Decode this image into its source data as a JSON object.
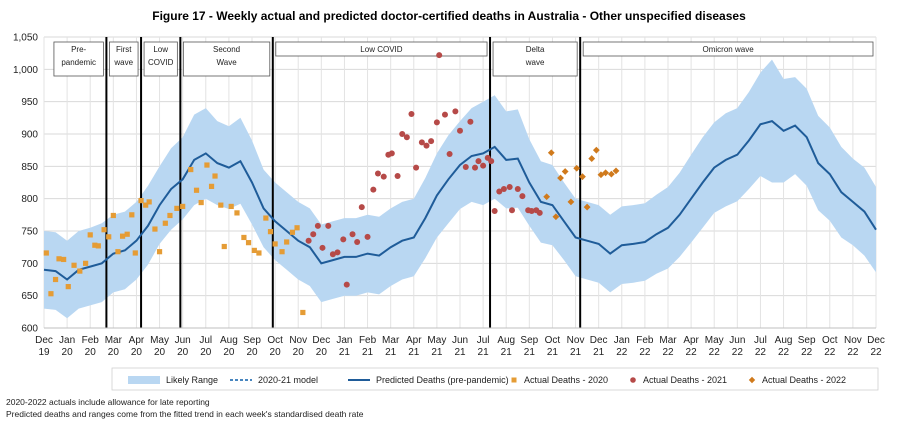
{
  "title": "Figure 17 - Weekly actual and predicted doctor-certified deaths in Australia - Other unspecified diseases",
  "footnotes": [
    "2020-2022  actuals include allowance for late reporting",
    "Predicted deaths and ranges come from the fitted trend in each week's standardised death rate"
  ],
  "colors": {
    "range": "#b9d7f2",
    "predicted": "#1f5c99",
    "model": "#2e75b6",
    "actual_2020": "#e59c35",
    "actual_2021": "#b64a48",
    "actual_2022": "#d07a1c"
  },
  "chart_data": {
    "type": "line",
    "title": "Figure 17 - Weekly actual and predicted doctor-certified deaths in Australia - Other unspecified diseases",
    "ylim": [
      600,
      1050
    ],
    "yticks": [
      600,
      650,
      700,
      750,
      800,
      850,
      900,
      950,
      1000,
      1050
    ],
    "ytick_labels": [
      "600",
      "650",
      "700",
      "750",
      "800",
      "850",
      "900",
      "950",
      "1,000",
      "1,050"
    ],
    "xlim": [
      0,
      36
    ],
    "xticks": [
      [
        "Dec",
        "19"
      ],
      [
        "Jan",
        "20"
      ],
      [
        "Feb",
        "20"
      ],
      [
        "Mar",
        "20"
      ],
      [
        "Apr",
        "20"
      ],
      [
        "May",
        "20"
      ],
      [
        "Jun",
        "20"
      ],
      [
        "Jul",
        "20"
      ],
      [
        "Aug",
        "20"
      ],
      [
        "Sep",
        "20"
      ],
      [
        "Oct",
        "20"
      ],
      [
        "Nov",
        "20"
      ],
      [
        "Dec",
        "20"
      ],
      [
        "Jan",
        "21"
      ],
      [
        "Feb",
        "21"
      ],
      [
        "Mar",
        "21"
      ],
      [
        "Apr",
        "21"
      ],
      [
        "May",
        "21"
      ],
      [
        "Jun",
        "21"
      ],
      [
        "Jul",
        "21"
      ],
      [
        "Aug",
        "21"
      ],
      [
        "Sep",
        "21"
      ],
      [
        "Oct",
        "21"
      ],
      [
        "Nov",
        "21"
      ],
      [
        "Dec",
        "21"
      ],
      [
        "Jan",
        "22"
      ],
      [
        "Feb",
        "22"
      ],
      [
        "Mar",
        "22"
      ],
      [
        "Apr",
        "22"
      ],
      [
        "May",
        "22"
      ],
      [
        "Jun",
        "22"
      ],
      [
        "Jul",
        "22"
      ],
      [
        "Aug",
        "22"
      ],
      [
        "Sep",
        "22"
      ],
      [
        "Oct",
        "22"
      ],
      [
        "Nov",
        "22"
      ],
      [
        "Dec",
        "22"
      ]
    ],
    "grid": true,
    "legend_position": "bottom",
    "legend": [
      "Likely Range",
      "2020-21 model",
      "Predicted Deaths (pre-pandemic)",
      "Actual Deaths - 2020",
      "Actual Deaths - 2021",
      "Actual Deaths - 2022"
    ],
    "periods": [
      {
        "label": [
          "Pre-",
          "pandemic"
        ],
        "start": 0.3,
        "end": 2.7,
        "boundary": null
      },
      {
        "label": [
          "First",
          "wave"
        ],
        "start": 2.7,
        "end": 4.2,
        "boundary": 2.7
      },
      {
        "label": [
          "Low",
          "COVID"
        ],
        "start": 4.2,
        "end": 5.9,
        "boundary": 4.2
      },
      {
        "label": [
          "Second",
          "Wave"
        ],
        "start": 5.9,
        "end": 9.9,
        "boundary": 5.9
      },
      {
        "label": [
          "Low COVID"
        ],
        "start": 9.9,
        "end": 19.3,
        "boundary": 9.9
      },
      {
        "label": [
          "Delta",
          "wave"
        ],
        "start": 19.3,
        "end": 23.2,
        "boundary": 19.3
      },
      {
        "label": [
          "Omicron wave"
        ],
        "start": 23.2,
        "end": 36,
        "boundary": 23.2
      }
    ],
    "predicted": [
      [
        0,
        690
      ],
      [
        0.5,
        688
      ],
      [
        1,
        675
      ],
      [
        1.5,
        690
      ],
      [
        2,
        695
      ],
      [
        2.5,
        700
      ],
      [
        3,
        715
      ],
      [
        3.5,
        720
      ],
      [
        4,
        735
      ],
      [
        4.5,
        758
      ],
      [
        5,
        790
      ],
      [
        5.5,
        815
      ],
      [
        6,
        830
      ],
      [
        6.5,
        860
      ],
      [
        7,
        870
      ],
      [
        7.5,
        855
      ],
      [
        8,
        848
      ],
      [
        8.5,
        858
      ],
      [
        9,
        825
      ],
      [
        9.5,
        785
      ],
      [
        10,
        765
      ],
      [
        10.5,
        750
      ],
      [
        11,
        735
      ],
      [
        11.5,
        725
      ],
      [
        12,
        700
      ],
      [
        12.5,
        705
      ],
      [
        13,
        710
      ],
      [
        13.5,
        710
      ],
      [
        14,
        715
      ],
      [
        14.5,
        712
      ],
      [
        15,
        725
      ],
      [
        15.5,
        735
      ],
      [
        16,
        740
      ],
      [
        16.5,
        770
      ],
      [
        17,
        805
      ],
      [
        17.5,
        830
      ],
      [
        18,
        852
      ],
      [
        18.5,
        866
      ],
      [
        19,
        870
      ],
      [
        19.5,
        880
      ],
      [
        20,
        860
      ],
      [
        20.5,
        862
      ],
      [
        21,
        825
      ],
      [
        21.5,
        795
      ],
      [
        22,
        790
      ],
      [
        22.5,
        765
      ],
      [
        23,
        740
      ],
      [
        23.5,
        735
      ],
      [
        24,
        730
      ],
      [
        24.5,
        715
      ],
      [
        25,
        728
      ],
      [
        25.5,
        730
      ],
      [
        26,
        733
      ],
      [
        26.5,
        745
      ],
      [
        27,
        755
      ],
      [
        27.5,
        775
      ],
      [
        28,
        800
      ],
      [
        28.5,
        825
      ],
      [
        29,
        848
      ],
      [
        29.5,
        860
      ],
      [
        30,
        868
      ],
      [
        30.5,
        890
      ],
      [
        31,
        915
      ],
      [
        31.5,
        920
      ],
      [
        32,
        905
      ],
      [
        32.5,
        913
      ],
      [
        33,
        895
      ],
      [
        33.5,
        855
      ],
      [
        34,
        838
      ],
      [
        34.5,
        810
      ],
      [
        35,
        795
      ],
      [
        35.5,
        780
      ],
      [
        36,
        752
      ]
    ],
    "range_upper": [
      [
        0,
        750
      ],
      [
        0.5,
        748
      ],
      [
        1,
        735
      ],
      [
        1.5,
        750
      ],
      [
        2,
        755
      ],
      [
        2.5,
        762
      ],
      [
        3,
        775
      ],
      [
        3.5,
        780
      ],
      [
        4,
        795
      ],
      [
        4.5,
        820
      ],
      [
        5,
        850
      ],
      [
        5.5,
        878
      ],
      [
        6,
        895
      ],
      [
        6.5,
        930
      ],
      [
        7,
        940
      ],
      [
        7.5,
        920
      ],
      [
        8,
        912
      ],
      [
        8.5,
        925
      ],
      [
        9,
        890
      ],
      [
        9.5,
        845
      ],
      [
        10,
        825
      ],
      [
        10.5,
        810
      ],
      [
        11,
        795
      ],
      [
        11.5,
        785
      ],
      [
        12,
        760
      ],
      [
        12.5,
        765
      ],
      [
        13,
        770
      ],
      [
        13.5,
        770
      ],
      [
        14,
        775
      ],
      [
        14.5,
        772
      ],
      [
        15,
        785
      ],
      [
        15.5,
        795
      ],
      [
        16,
        800
      ],
      [
        16.5,
        832
      ],
      [
        17,
        870
      ],
      [
        17.5,
        898
      ],
      [
        18,
        920
      ],
      [
        18.5,
        940
      ],
      [
        19,
        950
      ],
      [
        19.5,
        960
      ],
      [
        20,
        935
      ],
      [
        20.5,
        938
      ],
      [
        21,
        892
      ],
      [
        21.5,
        858
      ],
      [
        22,
        852
      ],
      [
        22.5,
        825
      ],
      [
        23,
        800
      ],
      [
        23.5,
        795
      ],
      [
        24,
        790
      ],
      [
        24.5,
        775
      ],
      [
        25,
        788
      ],
      [
        25.5,
        790
      ],
      [
        26,
        793
      ],
      [
        26.5,
        806
      ],
      [
        27,
        818
      ],
      [
        27.5,
        840
      ],
      [
        28,
        868
      ],
      [
        28.5,
        895
      ],
      [
        29,
        918
      ],
      [
        29.5,
        932
      ],
      [
        30,
        940
      ],
      [
        30.5,
        965
      ],
      [
        31,
        995
      ],
      [
        31.5,
        1015
      ],
      [
        32,
        985
      ],
      [
        32.5,
        988
      ],
      [
        33,
        970
      ],
      [
        33.5,
        928
      ],
      [
        34,
        910
      ],
      [
        34.5,
        880
      ],
      [
        35,
        862
      ],
      [
        35.5,
        848
      ],
      [
        36,
        818
      ]
    ],
    "range_lower": [
      [
        0,
        630
      ],
      [
        0.5,
        628
      ],
      [
        1,
        615
      ],
      [
        1.5,
        630
      ],
      [
        2,
        635
      ],
      [
        2.5,
        640
      ],
      [
        3,
        655
      ],
      [
        3.5,
        660
      ],
      [
        4,
        675
      ],
      [
        4.5,
        698
      ],
      [
        5,
        730
      ],
      [
        5.5,
        752
      ],
      [
        6,
        768
      ],
      [
        6.5,
        790
      ],
      [
        7,
        800
      ],
      [
        7.5,
        790
      ],
      [
        8,
        784
      ],
      [
        8.5,
        792
      ],
      [
        9,
        760
      ],
      [
        9.5,
        725
      ],
      [
        10,
        705
      ],
      [
        10.5,
        690
      ],
      [
        11,
        675
      ],
      [
        11.5,
        665
      ],
      [
        12,
        640
      ],
      [
        12.5,
        645
      ],
      [
        13,
        650
      ],
      [
        13.5,
        650
      ],
      [
        14,
        655
      ],
      [
        14.5,
        652
      ],
      [
        15,
        665
      ],
      [
        15.5,
        675
      ],
      [
        16,
        680
      ],
      [
        16.5,
        708
      ],
      [
        17,
        740
      ],
      [
        17.5,
        762
      ],
      [
        18,
        784
      ],
      [
        18.5,
        795
      ],
      [
        19,
        790
      ],
      [
        19.5,
        800
      ],
      [
        20,
        785
      ],
      [
        20.5,
        786
      ],
      [
        21,
        758
      ],
      [
        21.5,
        732
      ],
      [
        22,
        728
      ],
      [
        22.5,
        705
      ],
      [
        23,
        680
      ],
      [
        23.5,
        675
      ],
      [
        24,
        670
      ],
      [
        24.5,
        655
      ],
      [
        25,
        668
      ],
      [
        25.5,
        670
      ],
      [
        26,
        673
      ],
      [
        26.5,
        684
      ],
      [
        27,
        692
      ],
      [
        27.5,
        710
      ],
      [
        28,
        732
      ],
      [
        28.5,
        755
      ],
      [
        29,
        778
      ],
      [
        29.5,
        788
      ],
      [
        30,
        796
      ],
      [
        30.5,
        815
      ],
      [
        31,
        835
      ],
      [
        31.5,
        825
      ],
      [
        32,
        825
      ],
      [
        32.5,
        838
      ],
      [
        33,
        820
      ],
      [
        33.5,
        782
      ],
      [
        34,
        766
      ],
      [
        34.5,
        740
      ],
      [
        35,
        728
      ],
      [
        35.5,
        712
      ],
      [
        36,
        686
      ]
    ],
    "actual_2020": [
      [
        0.1,
        716
      ],
      [
        0.3,
        653
      ],
      [
        0.5,
        675
      ],
      [
        0.65,
        707
      ],
      [
        0.85,
        706
      ],
      [
        1.05,
        664
      ],
      [
        1.3,
        697
      ],
      [
        1.55,
        688
      ],
      [
        1.8,
        700
      ],
      [
        2,
        744
      ],
      [
        2.2,
        728
      ],
      [
        2.35,
        727
      ],
      [
        2.6,
        752
      ],
      [
        2.8,
        741
      ],
      [
        3,
        774
      ],
      [
        3.2,
        718
      ],
      [
        3.4,
        742
      ],
      [
        3.6,
        745
      ],
      [
        3.8,
        775
      ],
      [
        3.95,
        716
      ],
      [
        4.2,
        797
      ],
      [
        4.4,
        790
      ],
      [
        4.55,
        795
      ],
      [
        4.8,
        753
      ],
      [
        5,
        718
      ],
      [
        5.25,
        762
      ],
      [
        5.45,
        774
      ],
      [
        5.75,
        785
      ],
      [
        6,
        788
      ],
      [
        6.35,
        845
      ],
      [
        6.6,
        813
      ],
      [
        6.8,
        794
      ],
      [
        7.05,
        852
      ],
      [
        7.25,
        819
      ],
      [
        7.4,
        835
      ],
      [
        7.65,
        790
      ],
      [
        7.8,
        726
      ],
      [
        8.1,
        788
      ],
      [
        8.35,
        778
      ],
      [
        8.65,
        740
      ],
      [
        8.85,
        732
      ],
      [
        9.1,
        720
      ],
      [
        9.3,
        716
      ],
      [
        9.6,
        770
      ],
      [
        9.8,
        749
      ],
      [
        10,
        730
      ],
      [
        10.3,
        718
      ],
      [
        10.5,
        733
      ],
      [
        10.75,
        748
      ],
      [
        10.95,
        755
      ],
      [
        11.2,
        624
      ]
    ],
    "actual_2021": [
      [
        11.45,
        735
      ],
      [
        11.65,
        745
      ],
      [
        11.85,
        758
      ],
      [
        12.05,
        724
      ],
      [
        12.3,
        758
      ],
      [
        12.5,
        714
      ],
      [
        12.7,
        717
      ],
      [
        12.95,
        737
      ],
      [
        13.1,
        667
      ],
      [
        13.35,
        745
      ],
      [
        13.55,
        733
      ],
      [
        13.75,
        787
      ],
      [
        14,
        741
      ],
      [
        14.25,
        814
      ],
      [
        14.45,
        839
      ],
      [
        14.7,
        834
      ],
      [
        14.9,
        868
      ],
      [
        15.05,
        870
      ],
      [
        15.3,
        835
      ],
      [
        15.5,
        900
      ],
      [
        15.7,
        895
      ],
      [
        15.9,
        931
      ],
      [
        16.1,
        848
      ],
      [
        16.35,
        887
      ],
      [
        16.55,
        882
      ],
      [
        16.75,
        889
      ],
      [
        17,
        918
      ],
      [
        17.1,
        1022
      ],
      [
        17.35,
        930
      ],
      [
        17.55,
        869
      ],
      [
        17.8,
        935
      ],
      [
        18,
        905
      ],
      [
        18.25,
        849
      ],
      [
        18.45,
        919
      ],
      [
        18.65,
        848
      ],
      [
        18.8,
        858
      ],
      [
        19,
        851
      ],
      [
        19.2,
        863
      ],
      [
        19.35,
        858
      ],
      [
        19.5,
        781
      ],
      [
        19.7,
        811
      ],
      [
        19.9,
        815
      ],
      [
        20.15,
        818
      ],
      [
        20.25,
        782
      ],
      [
        20.5,
        815
      ],
      [
        20.7,
        804
      ],
      [
        20.95,
        782
      ],
      [
        21.1,
        781
      ],
      [
        21.3,
        782
      ],
      [
        21.45,
        778
      ]
    ],
    "actual_2022": [
      [
        21.75,
        803
      ],
      [
        21.95,
        871
      ],
      [
        22.15,
        772
      ],
      [
        22.35,
        832
      ],
      [
        22.55,
        842
      ],
      [
        22.8,
        795
      ],
      [
        23.05,
        847
      ],
      [
        23.3,
        834
      ],
      [
        23.5,
        787
      ],
      [
        23.7,
        862
      ],
      [
        23.9,
        875
      ],
      [
        24.1,
        837
      ],
      [
        24.3,
        840
      ],
      [
        24.55,
        838
      ],
      [
        24.75,
        843
      ]
    ]
  }
}
